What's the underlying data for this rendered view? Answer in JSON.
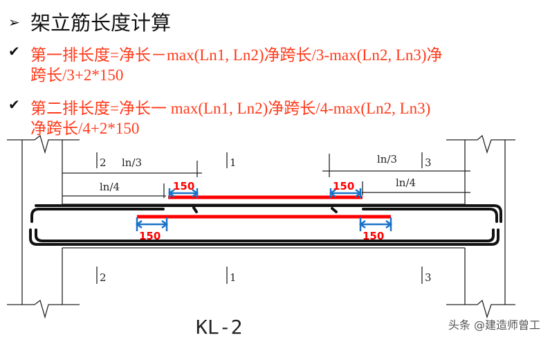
{
  "slide": {
    "title": "架立筋长度计算",
    "title_bullet_icon": "arrow-bullet-icon",
    "rule1_line1": "第一排长度=净长－max(Ln1, Ln2)净跨长/3-max(Ln2, Ln3)净",
    "rule1_line2": "跨长/3+2*150",
    "rule2_line1": "第二排长度=净长一 max(Ln1, Ln2)净跨长/4-max(Ln2, Ln3)",
    "rule2_line2": "净跨长/4+2*150",
    "check_icon": "checkmark-icon",
    "text_color": "#ff3a1a"
  },
  "diagram": {
    "ln3": "ln/3",
    "ln4": "ln/4",
    "sec2": "2",
    "sec1": "1",
    "sec3": "3",
    "dim150": "150",
    "beam_label": "KL-2",
    "bar_color": "#ff0000",
    "arrow_color": "#1a73c8"
  },
  "watermark": "头条 @建造师曾工"
}
